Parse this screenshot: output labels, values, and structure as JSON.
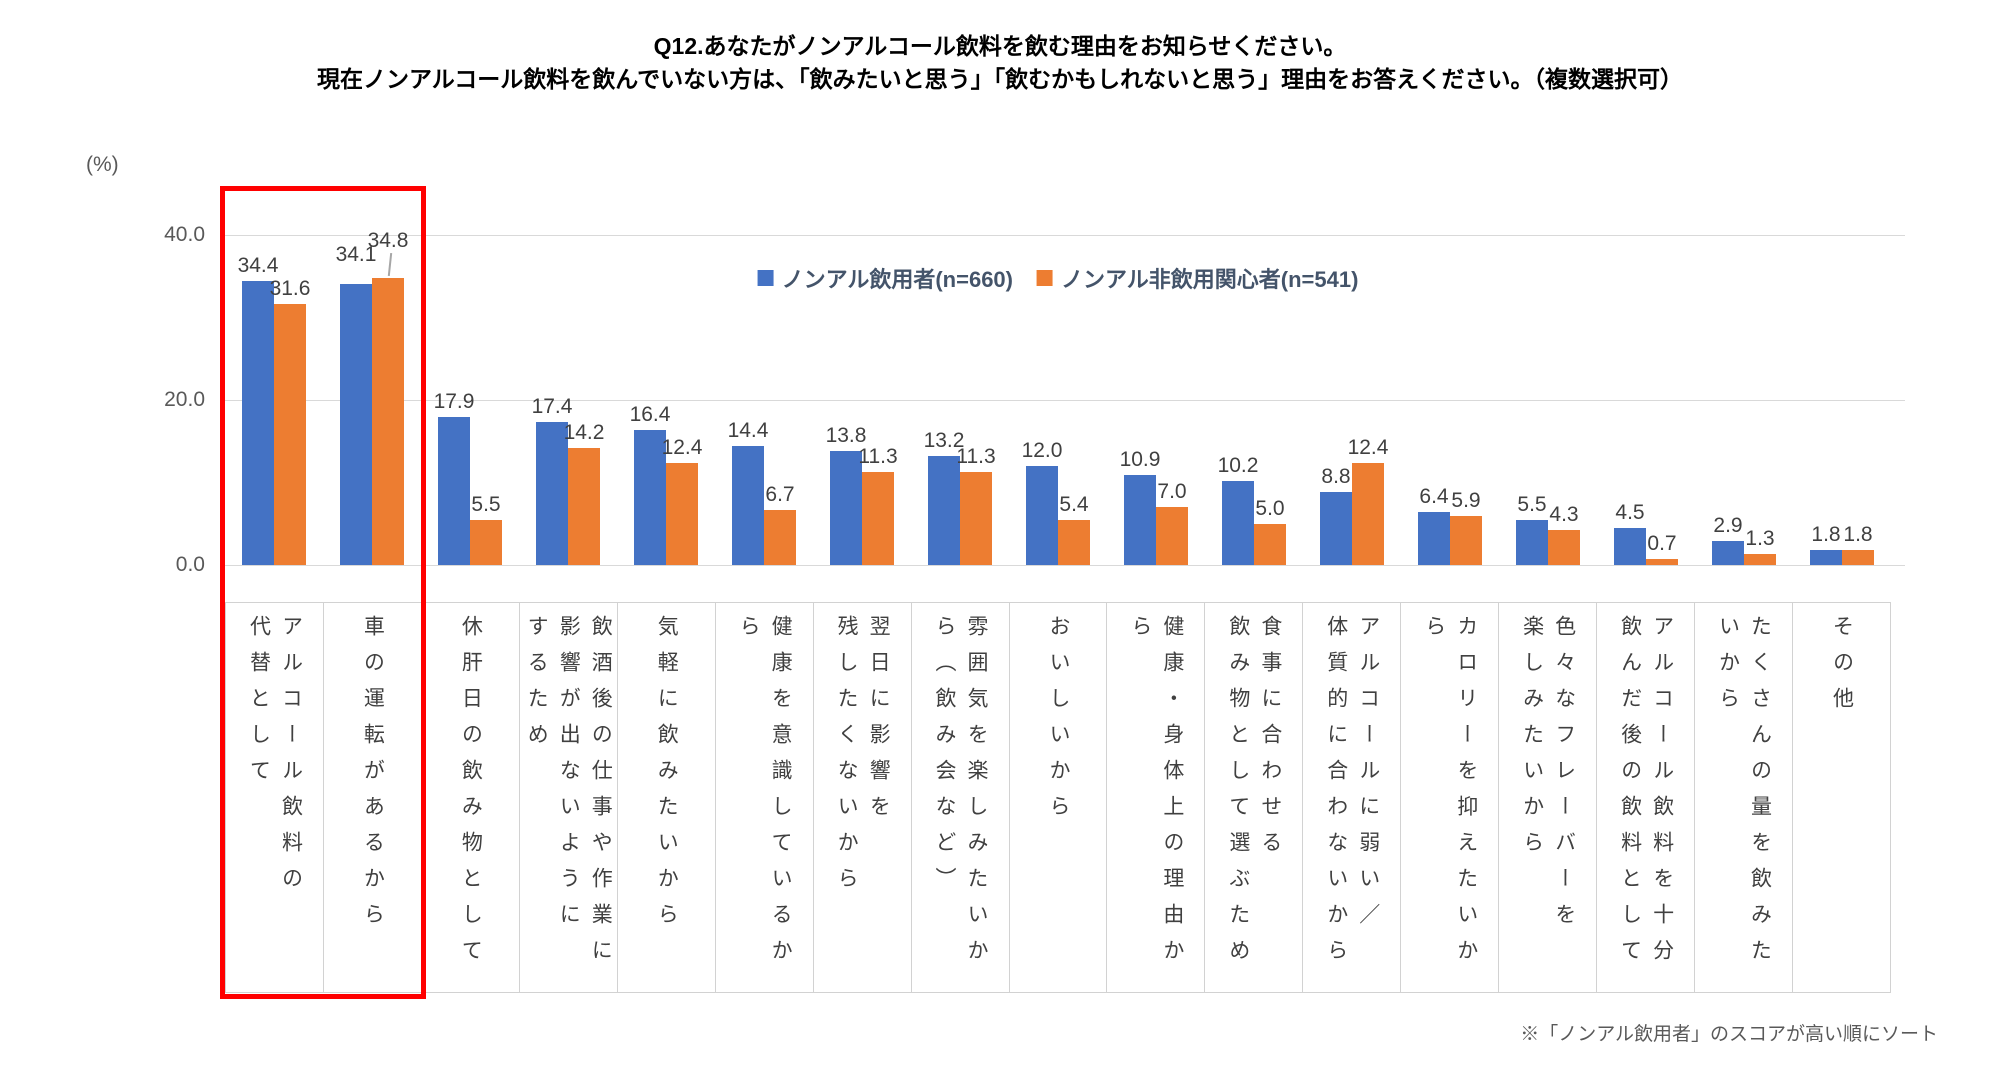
{
  "title": {
    "line1": "Q12.あなたがノンアルコール飲料を飲む理由をお知らせください。",
    "line2": "現在ノンアルコール飲料を飲んでいない方は、「飲みたいと思う」「飲むかもしれないと思う」理由をお答えください。（複数選択可）"
  },
  "unit_label": "(%)",
  "footnote": "※「ノンアル飲用者」のスコアが高い順にソート",
  "chart_data": {
    "type": "bar",
    "title": "Q12.あなたがノンアルコール飲料を飲む理由をお知らせください。現在ノンアルコール飲料を飲んでいない方は、「飲みたいと思う」「飲むかもしれないと思う」理由をお答えください。（複数選択可）",
    "ylabel": "(%)",
    "ylim": [
      0,
      45
    ],
    "ytick_values": [
      0,
      20,
      40
    ],
    "ytick_labels": [
      "0.0",
      "20.0",
      "40.0"
    ],
    "grid": true,
    "legend_position": "top-center",
    "categories": [
      "アルコール飲料の代替として",
      "車の運転があるから",
      "休肝日の飲み物として",
      "飲酒後の仕事や作業に影響が出ないようにするため",
      "気軽に飲みたいから",
      "健康を意識しているから",
      "翌日に影響を残したくないから",
      "雰囲気を楽しみたいから（飲み会など）",
      "おいしいから",
      "健康・身体上の理由から",
      "食事に合わせる飲み物として選ぶため",
      "アルコールに弱い／体質的に合わないから",
      "カロリーを抑えたいから",
      "色々なフレーバーを楽しみたいから",
      "アルコール飲料を十分飲んだ後の飲料として",
      "たくさんの量を飲みたいから",
      "その他"
    ],
    "category_display": [
      "アルコール飲料の\n代替として",
      "車の運転があるから",
      "休肝日の飲み物として",
      "飲酒後の仕事や作業に\n影響が出ないように\nするため",
      "気軽に飲みたいから",
      "健康を意識しているか\nら",
      "翌日に影響を\n残したくないから",
      "雰囲気を楽しみたいか\nら（飲み会など）",
      "おいしいから",
      "健康・身体上の理由か\nら",
      "食事に合わせる\n飲み物として選ぶため",
      "アルコールに弱い／\n体質的に合わないから",
      "カロリーを抑えたいか\nら",
      "色々なフレーバーを\n楽しみたいから",
      "アルコール飲料を十分\n飲んだ後の飲料として",
      "たくさんの量を飲みた\nいから",
      "その他"
    ],
    "series": [
      {
        "name": "ノンアル飲用者(n=660)",
        "color": "#4472C4",
        "values": [
          34.4,
          34.1,
          17.9,
          17.4,
          16.4,
          14.4,
          13.8,
          13.2,
          12.0,
          10.9,
          10.2,
          8.8,
          6.4,
          5.5,
          4.5,
          2.9,
          1.8
        ]
      },
      {
        "name": "ノンアル非飲用関心者(n=541)",
        "color": "#ED7D31",
        "values": [
          31.6,
          34.8,
          5.5,
          14.2,
          12.4,
          6.7,
          11.3,
          11.3,
          5.4,
          7.0,
          5.0,
          12.4,
          5.9,
          4.3,
          0.7,
          1.3,
          1.8
        ]
      }
    ],
    "highlight_box": {
      "color": "#FF0000",
      "category_indexes": [
        0,
        1
      ],
      "note": "red box around top two categories"
    }
  }
}
